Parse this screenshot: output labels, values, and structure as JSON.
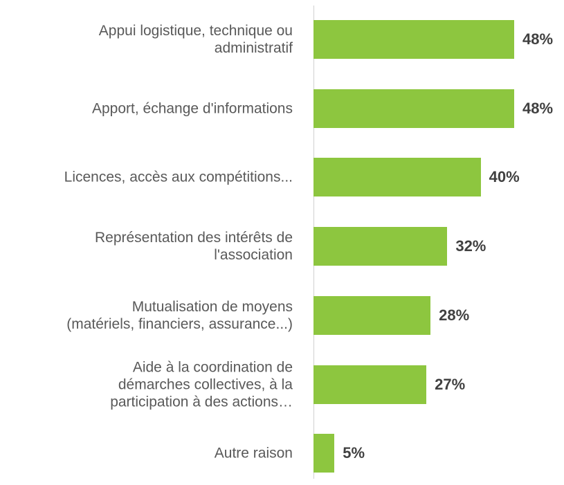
{
  "chart_data": {
    "type": "bar",
    "orientation": "horizontal",
    "categories": [
      "Appui logistique, technique ou\nadministratif",
      "Apport, échange d'informations",
      "Licences, accès aux compétitions...",
      "Représentation des intérêts de\nl'association",
      "Mutualisation de moyens\n(matériels, financiers, assurance...)",
      "Aide à la coordination de\ndémarches collectives, à la\nparticipation à des actions…",
      "Autre raison"
    ],
    "values": [
      48,
      48,
      40,
      32,
      28,
      27,
      5
    ],
    "value_labels": [
      "48%",
      "48%",
      "40%",
      "32%",
      "28%",
      "27%",
      "5%"
    ],
    "color": "#8dc63f"
  }
}
